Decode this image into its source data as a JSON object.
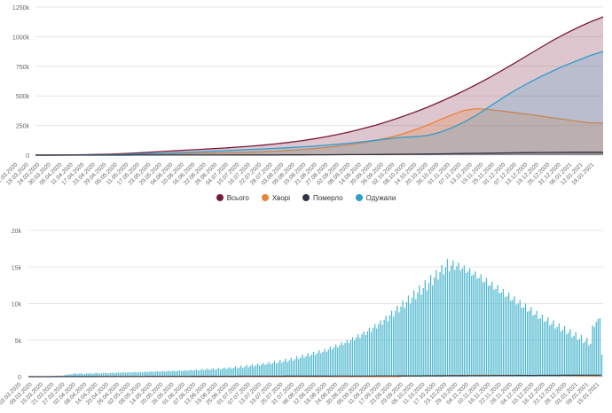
{
  "chart_data": [
    {
      "type": "area",
      "y_ticks": [
        "0",
        "250k",
        "500k",
        "750k",
        "1000k",
        "1250k"
      ],
      "ylim": [
        0,
        1250000
      ],
      "grid": true,
      "x_labels": [
        "12.03.2020",
        "18.03.2020",
        "24.03.2020",
        "30.03.2020",
        "05.04.2020",
        "11.04.2020",
        "17.04.2020",
        "23.04.2020",
        "29.04.2020",
        "05.05.2020",
        "11.05.2020",
        "17.05.2020",
        "23.05.2020",
        "29.05.2020",
        "04.06.2020",
        "10.06.2020",
        "16.06.2020",
        "22.06.2020",
        "28.06.2020",
        "04.07.2020",
        "10.07.2020",
        "16.07.2020",
        "22.07.2020",
        "28.07.2020",
        "03.08.2020",
        "09.08.2020",
        "15.08.2020",
        "21.08.2020",
        "27.08.2020",
        "02.09.2020",
        "08.09.2020",
        "14.09.2020",
        "20.09.2020",
        "26.09.2020",
        "02.10.2020",
        "08.10.2020",
        "14.10.2020",
        "20.10.2020",
        "26.10.2020",
        "01.11.2020",
        "07.11.2020",
        "13.11.2020",
        "19.11.2020",
        "25.11.2020",
        "01.12.2020",
        "07.12.2020",
        "13.12.2020",
        "19.12.2020",
        "25.12.2020",
        "31.12.2020",
        "06.01.2021",
        "12.01.2021",
        "18.01.2021"
      ],
      "series": [
        {
          "name": "Всього",
          "color": "#7a1a3a",
          "values": [
            0,
            0,
            1000,
            2000,
            4000,
            6000,
            9000,
            13000,
            18000,
            24000,
            30000,
            36000,
            42000,
            48000,
            54000,
            60000,
            67000,
            75000,
            84000,
            94000,
            106000,
            120000,
            136000,
            154000,
            175000,
            198000,
            225000,
            254000,
            287000,
            322000,
            360000,
            401000,
            446000,
            494000,
            545000,
            599000,
            656000,
            716000,
            778000,
            842000,
            906000,
            968000,
            1025000,
            1078000,
            1126000,
            1168000
          ]
        },
        {
          "name": "Хворі",
          "color": "#e8833a",
          "values": [
            0,
            0,
            800,
            1500,
            2500,
            3800,
            5000,
            6500,
            8000,
            9500,
            11000,
            12500,
            14000,
            15500,
            17000,
            19000,
            21000,
            24000,
            28000,
            33000,
            39000,
            46000,
            54000,
            64000,
            76000,
            90000,
            106000,
            125000,
            148000,
            175000,
            210000,
            250000,
            295000,
            340000,
            378000,
            392000,
            385000,
            372000,
            358000,
            345000,
            330000,
            315000,
            300000,
            285000,
            272000,
            270000
          ]
        },
        {
          "name": "Померло",
          "color": "#2f3542",
          "values": [
            0,
            0,
            20,
            50,
            100,
            150,
            200,
            300,
            400,
            500,
            600,
            700,
            800,
            900,
            1000,
            1100,
            1250,
            1400,
            1600,
            1800,
            2100,
            2400,
            2800,
            3200,
            3700,
            4200,
            4800,
            5500,
            6300,
            7200,
            8200,
            9300,
            10500,
            11800,
            13200,
            14700,
            16200,
            17700,
            19200,
            20600,
            21800,
            22700,
            23300,
            23700,
            24000,
            24200
          ]
        },
        {
          "name": "Одужали",
          "color": "#2e9ccc",
          "values": [
            0,
            0,
            100,
            400,
            1200,
            2200,
            3500,
            5500,
            8000,
            11000,
            15000,
            19000,
            23000,
            27000,
            32000,
            37000,
            42000,
            47000,
            52000,
            57000,
            62000,
            68000,
            75000,
            83000,
            92000,
            102000,
            113000,
            125000,
            138000,
            150000,
            155000,
            165000,
            190000,
            230000,
            280000,
            340000,
            410000,
            480000,
            545000,
            605000,
            660000,
            710000,
            758000,
            800000,
            842000,
            875000
          ]
        }
      ],
      "legend_position": "bottom"
    },
    {
      "type": "bar",
      "y_ticks": [
        "0",
        "5k",
        "10k",
        "15k",
        "20k"
      ],
      "ylim": [
        0,
        20000
      ],
      "grid": true,
      "x_labels": [
        "03.03.2020",
        "09.03.2020",
        "15.03.2020",
        "21.03.2020",
        "27.03.2020",
        "02.04.2020",
        "08.04.2020",
        "14.04.2020",
        "20.04.2020",
        "26.04.2020",
        "02.05.2020",
        "08.05.2020",
        "14.05.2020",
        "20.05.2020",
        "26.05.2020",
        "01.06.2020",
        "07.06.2020",
        "13.06.2020",
        "19.06.2020",
        "25.06.2020",
        "01.07.2020",
        "07.07.2020",
        "13.07.2020",
        "19.07.2020",
        "25.07.2020",
        "31.07.2020",
        "06.08.2020",
        "12.08.2020",
        "18.08.2020",
        "24.08.2020",
        "30.08.2020",
        "05.09.2020",
        "11.09.2020",
        "17.09.2020",
        "23.09.2020",
        "29.09.2020",
        "05.10.2020",
        "11.10.2020",
        "17.10.2020",
        "23.10.2020",
        "29.10.2020",
        "04.11.2020",
        "10.11.2020",
        "16.11.2020",
        "22.11.2020",
        "28.11.2020",
        "04.12.2020",
        "10.12.2020",
        "16.12.2020",
        "22.12.2020",
        "28.12.2020",
        "03.01.2021",
        "09.01.2021",
        "15.01.2021"
      ],
      "values": [
        0,
        0,
        0,
        0,
        0,
        0,
        0,
        0,
        0,
        0,
        0,
        0,
        0,
        50,
        80,
        100,
        120,
        150,
        100,
        200,
        250,
        300,
        350,
        300,
        400,
        450,
        380,
        420,
        480,
        350,
        400,
        450,
        420,
        500,
        380,
        450,
        520,
        480,
        400,
        460,
        500,
        520,
        480,
        450,
        500,
        550,
        480,
        520,
        580,
        500,
        550,
        600,
        520,
        580,
        620,
        550,
        600,
        650,
        580,
        620,
        680,
        600,
        650,
        700,
        620,
        680,
        720,
        650,
        700,
        750,
        680,
        720,
        780,
        700,
        750,
        800,
        720,
        780,
        820,
        750,
        800,
        850,
        780,
        820,
        900,
        800,
        850,
        950,
        820,
        880,
        1000,
        850,
        900,
        1050,
        880,
        950,
        1100,
        920,
        1000,
        1150,
        950,
        1050,
        1200,
        1000,
        1100,
        1250,
        1050,
        1150,
        1300,
        1100,
        1200,
        1400,
        1150,
        1250,
        1500,
        1200,
        1350,
        1600,
        1300,
        1450,
        1700,
        1400,
        1550,
        1800,
        1500,
        1650,
        1900,
        1600,
        1750,
        2000,
        1700,
        1850,
        2150,
        1800,
        1950,
        2300,
        1900,
        2100,
        2450,
        2000,
        2250,
        2600,
        2200,
        2400,
        2800,
        2400,
        2600,
        3000,
        2600,
        2800,
        3200,
        2800,
        3000,
        3400,
        3000,
        3200,
        3600,
        3200,
        3400,
        3800,
        3400,
        3700,
        4100,
        3700,
        4000,
        4400,
        4000,
        4300,
        4700,
        4300,
        4600,
        5000,
        4600,
        5000,
        5400,
        5000,
        5400,
        5800,
        5300,
        5800,
        6200,
        5700,
        6200,
        6700,
        6100,
        6700,
        7200,
        6600,
        7200,
        7700,
        7100,
        7800,
        8300,
        7600,
        8400,
        9000,
        8200,
        9000,
        9700,
        8800,
        9600,
        10400,
        9400,
        10200,
        11100,
        10000,
        10800,
        11800,
        10600,
        11500,
        12500,
        11200,
        12100,
        13200,
        11800,
        12800,
        13900,
        12500,
        13600,
        14600,
        13300,
        14300,
        15300,
        14000,
        15000,
        16100,
        14400,
        15200,
        15900,
        14600,
        15100,
        15600,
        14500,
        14800,
        15200,
        14200,
        14400,
        14800,
        13800,
        14000,
        14400,
        13400,
        13500,
        14000,
        12900,
        13000,
        13500,
        12400,
        12500,
        13000,
        11900,
        12000,
        12500,
        11400,
        11500,
        12000,
        10900,
        11000,
        11500,
        10400,
        10500,
        11000,
        9900,
        10000,
        10500,
        9400,
        9500,
        10000,
        8900,
        9000,
        9500,
        8400,
        8500,
        9000,
        7900,
        8000,
        8500,
        7500,
        7600,
        8100,
        7000,
        7200,
        7700,
        6600,
        6800,
        7300,
        6200,
        6400,
        6900,
        5800,
        6000,
        6500,
        5400,
        5600,
        6100,
        5000,
        5200,
        5700,
        4600,
        4800,
        5300,
        4300,
        4500,
        7000,
        6800,
        7500,
        7900,
        8000,
        3000
      ],
      "overlay_lines": [
        {
          "name": "Померло",
          "color": "#2f3542"
        },
        {
          "name": "Хворі",
          "color": "#e8833a"
        }
      ]
    }
  ],
  "legend": [
    {
      "name": "Всього",
      "color": "#7a1a3a"
    },
    {
      "name": "Хворі",
      "color": "#e8833a"
    },
    {
      "name": "Померло",
      "color": "#2f3542"
    },
    {
      "name": "Одужали",
      "color": "#2e9ccc"
    }
  ]
}
